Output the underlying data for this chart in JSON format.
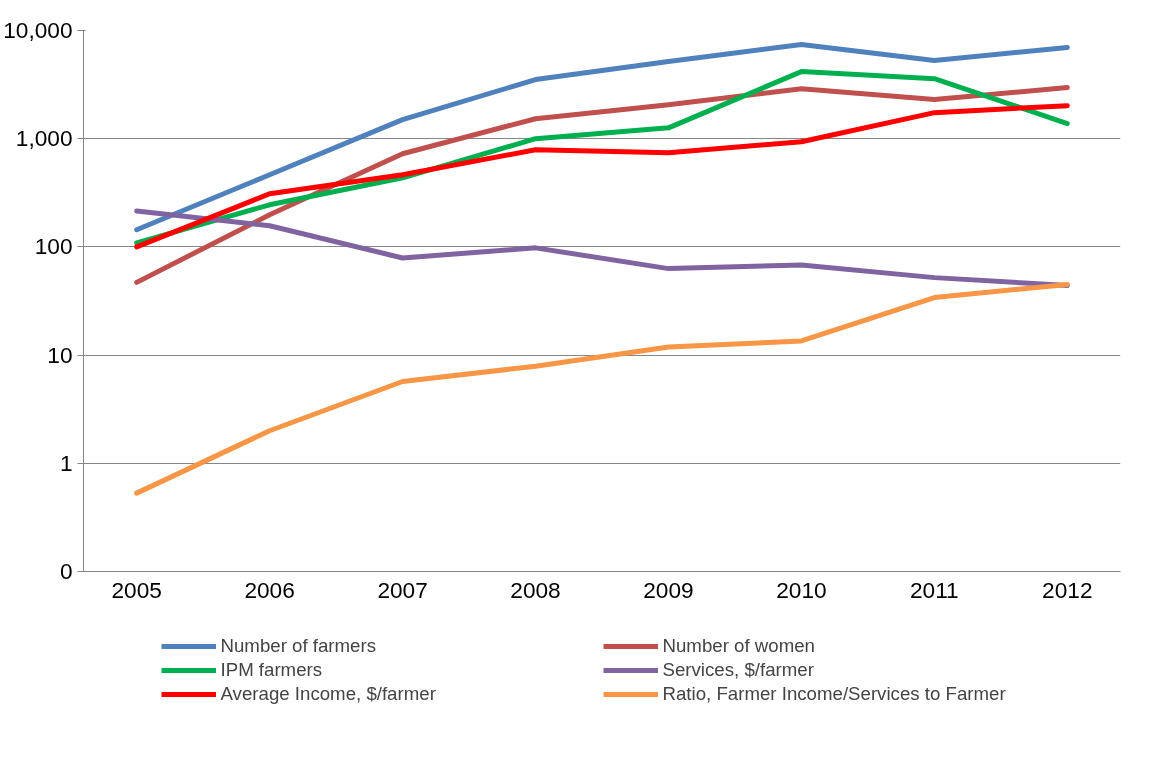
{
  "chart_data": {
    "type": "line",
    "categories": [
      "2005",
      "2006",
      "2007",
      "2008",
      "2009",
      "2010",
      "2011",
      "2012"
    ],
    "log": "y",
    "ylim": [
      0.1,
      10000
    ],
    "yticks": [
      {
        "value": 0.1,
        "label": "0"
      },
      {
        "value": 1,
        "label": "1"
      },
      {
        "value": 10,
        "label": "10"
      },
      {
        "value": 100,
        "label": "100"
      },
      {
        "value": 1000,
        "label": "1,000"
      },
      {
        "value": 10000,
        "label": "10,000"
      }
    ],
    "grid": "y",
    "legend": "bottom",
    "marker": "none",
    "line_style": "solid",
    "series": [
      {
        "name": "Number of farmers",
        "color": "#4f81bd",
        "values": [
          144,
          464,
          1500,
          3520,
          5160,
          7420,
          5280,
          6960
        ]
      },
      {
        "name": "Number of women",
        "color": "#c0504d",
        "values": [
          47,
          198,
          726,
          1530,
          2060,
          2900,
          2300,
          2970
        ]
      },
      {
        "name": "IPM farmers",
        "color": "#00b050",
        "values": [
          109,
          245,
          435,
          1000,
          1260,
          4170,
          3590,
          1380
        ]
      },
      {
        "name": "Services, $/farmer",
        "color": "#8064a2",
        "values": [
          215,
          157,
          79,
          98,
          63,
          68,
          52,
          44
        ]
      },
      {
        "name": "Average Income, $/farmer",
        "color": "#ff0000",
        "values": [
          100,
          310,
          464,
          790,
          742,
          938,
          1740,
          2020
        ]
      },
      {
        "name": "Ratio, Farmer Income/Services to Farmer",
        "color": "#f79646",
        "values": [
          0.53,
          2.0,
          5.7,
          7.9,
          11.9,
          13.5,
          34,
          45
        ]
      }
    ]
  }
}
